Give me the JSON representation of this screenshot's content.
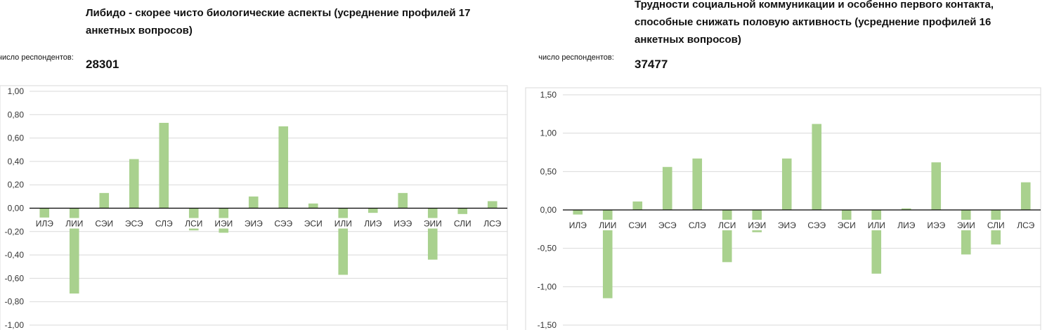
{
  "chart_data": [
    {
      "type": "bar",
      "title": "Либидо - скорее чисто биологические аспекты (усреднение профилей 17 анкетных вопросов)",
      "respondents_label": "число респондентов:",
      "respondents": "28301",
      "categories": [
        "ИЛЭ",
        "ЛИИ",
        "СЭИ",
        "ЭСЭ",
        "СЛЭ",
        "ЛСИ",
        "ИЭИ",
        "ЭИЭ",
        "СЭЭ",
        "ЭСИ",
        "ИЛИ",
        "ЛИЭ",
        "ИЭЭ",
        "ЭИИ",
        "СЛИ",
        "ЛСЭ"
      ],
      "values": [
        -0.08,
        -0.73,
        0.13,
        0.42,
        0.73,
        -0.19,
        -0.21,
        0.1,
        0.7,
        0.04,
        -0.57,
        -0.04,
        0.13,
        -0.44,
        -0.05,
        0.06
      ],
      "ylim": [
        -1.0,
        1.0
      ],
      "yticks": [
        1.0,
        0.8,
        0.6,
        0.4,
        0.2,
        0.0,
        -0.2,
        -0.4,
        -0.6,
        -0.8,
        -1.0
      ],
      "ytick_labels": [
        "1,00",
        "0,80",
        "0,60",
        "0,40",
        "0,20",
        "0,00",
        "-0,20",
        "-0,40",
        "-0,60",
        "-0,80",
        "-1,00"
      ],
      "bar_color": "#a9d18e",
      "grid": true
    },
    {
      "type": "bar",
      "title": "Трудности социальной коммуникации и особенно первого контакта, способные снижать половую активность (усреднение профилей 16 анкетных вопросов)",
      "respondents_label": "число респондентов:",
      "respondents": "37477",
      "categories": [
        "ИЛЭ",
        "ЛИИ",
        "СЭИ",
        "ЭСЭ",
        "СЛЭ",
        "ЛСИ",
        "ИЭИ",
        "ЭИЭ",
        "СЭЭ",
        "ЭСИ",
        "ИЛИ",
        "ЛИЭ",
        "ИЭЭ",
        "ЭИИ",
        "СЛИ",
        "ЛСЭ"
      ],
      "values": [
        -0.06,
        -1.15,
        0.11,
        0.56,
        0.67,
        -0.68,
        -0.29,
        0.67,
        1.12,
        -0.2,
        -0.83,
        0.02,
        0.62,
        -0.58,
        -0.45,
        0.36
      ],
      "ylim": [
        -1.5,
        1.5
      ],
      "yticks": [
        1.5,
        1.0,
        0.5,
        0.0,
        -0.5,
        -1.0,
        -1.5
      ],
      "ytick_labels": [
        "1,50",
        "1,00",
        "0,50",
        "0,00",
        "-0,50",
        "-1,00",
        "-1,50"
      ],
      "bar_color": "#a9d18e",
      "grid": true
    }
  ]
}
